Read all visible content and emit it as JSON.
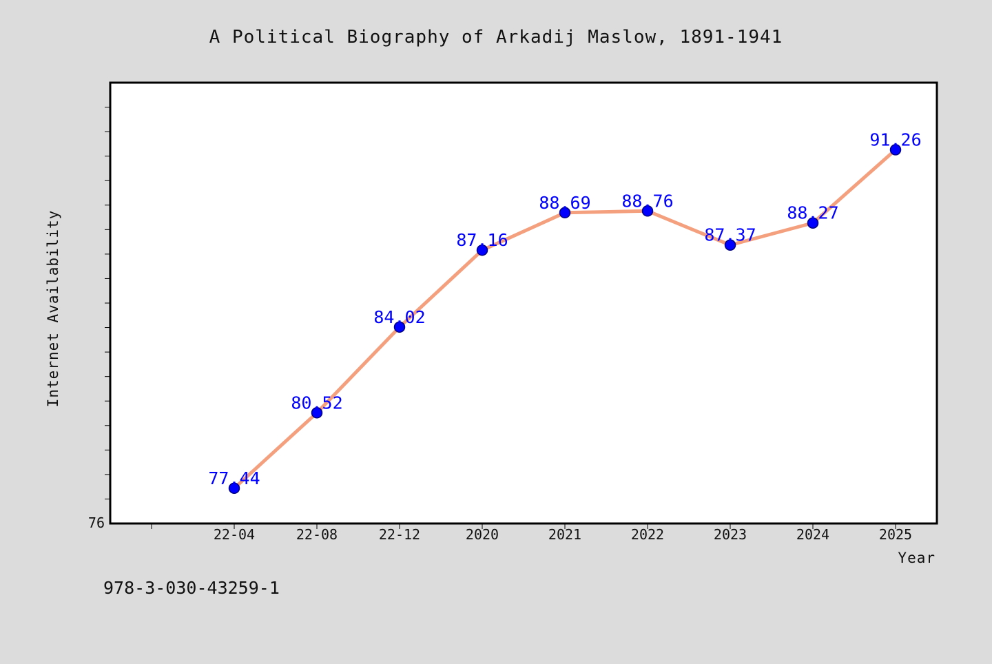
{
  "chart_data": {
    "type": "line",
    "title": "A Political Biography of Arkadij Maslow, 1891-1941",
    "xlabel": "Year",
    "ylabel": "Internet Availability",
    "categories": [
      "22-04",
      "22-08",
      "22-12",
      "2020",
      "2021",
      "2022",
      "2023",
      "2024",
      "2025"
    ],
    "series": [
      {
        "values": [
          77.44,
          80.52,
          84.02,
          87.16,
          88.69,
          88.76,
          87.37,
          88.27,
          91.26
        ],
        "data_labels": [
          "77.44",
          "80.52",
          "84.02",
          "87.16",
          "88.69",
          "88.76",
          "87.37",
          "88.27",
          "91.26"
        ]
      }
    ],
    "y_tick_labels": [
      "76"
    ],
    "ylim": [
      76,
      94
    ],
    "grid": false,
    "legend": "none",
    "colors": {
      "line": "#f4a07e",
      "marker": "#0000ff",
      "marker_edge": "#000080",
      "data_label": "#0000ff",
      "plot_background": "#ffffff",
      "page_background": "#dcdcdc"
    }
  },
  "footnote": "978-3-030-43259-1"
}
